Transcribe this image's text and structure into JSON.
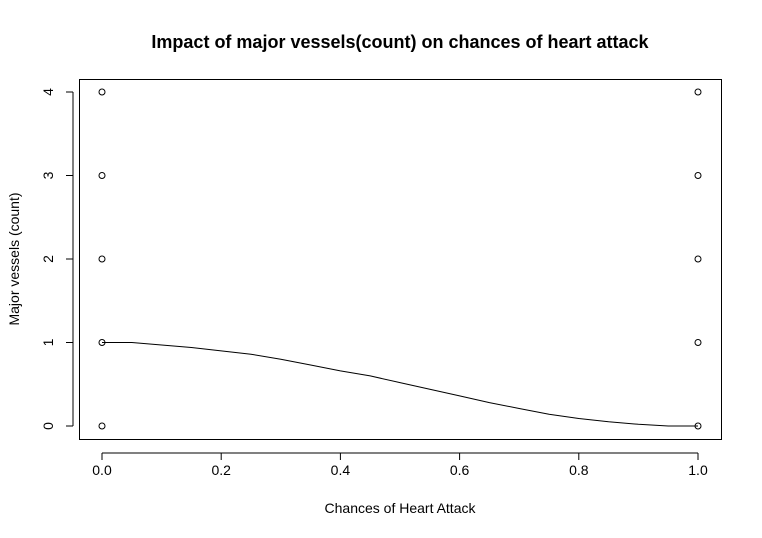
{
  "chart_data": {
    "type": "scatter",
    "title": "Impact of major vessels(count) on chances of heart attack",
    "xlabel": "Chances of Heart Attack",
    "ylabel": "Major vessels (count)",
    "xlim": [
      0,
      1
    ],
    "ylim": [
      0,
      4
    ],
    "xticks": [
      0.0,
      0.2,
      0.4,
      0.6,
      0.8,
      1.0
    ],
    "xtick_labels": [
      "0.0",
      "0.2",
      "0.4",
      "0.6",
      "0.8",
      "1.0"
    ],
    "yticks": [
      0,
      1,
      2,
      3,
      4
    ],
    "ytick_labels": [
      "0",
      "1",
      "2",
      "3",
      "4"
    ],
    "grid": false,
    "points": [
      {
        "x": 0,
        "y": 0
      },
      {
        "x": 0,
        "y": 1
      },
      {
        "x": 0,
        "y": 2
      },
      {
        "x": 0,
        "y": 3
      },
      {
        "x": 0,
        "y": 4
      },
      {
        "x": 1,
        "y": 0
      },
      {
        "x": 1,
        "y": 1
      },
      {
        "x": 1,
        "y": 2
      },
      {
        "x": 1,
        "y": 3
      },
      {
        "x": 1,
        "y": 4
      }
    ],
    "smooth_line": {
      "x": [
        0,
        0.05,
        0.1,
        0.15,
        0.2,
        0.25,
        0.3,
        0.35,
        0.4,
        0.45,
        0.5,
        0.55,
        0.6,
        0.65,
        0.7,
        0.75,
        0.8,
        0.85,
        0.9,
        0.95,
        1.0
      ],
      "y": [
        1.0,
        1.0,
        0.97,
        0.94,
        0.9,
        0.86,
        0.8,
        0.73,
        0.66,
        0.6,
        0.52,
        0.44,
        0.36,
        0.28,
        0.21,
        0.14,
        0.09,
        0.05,
        0.02,
        0.0,
        0.0
      ]
    }
  }
}
